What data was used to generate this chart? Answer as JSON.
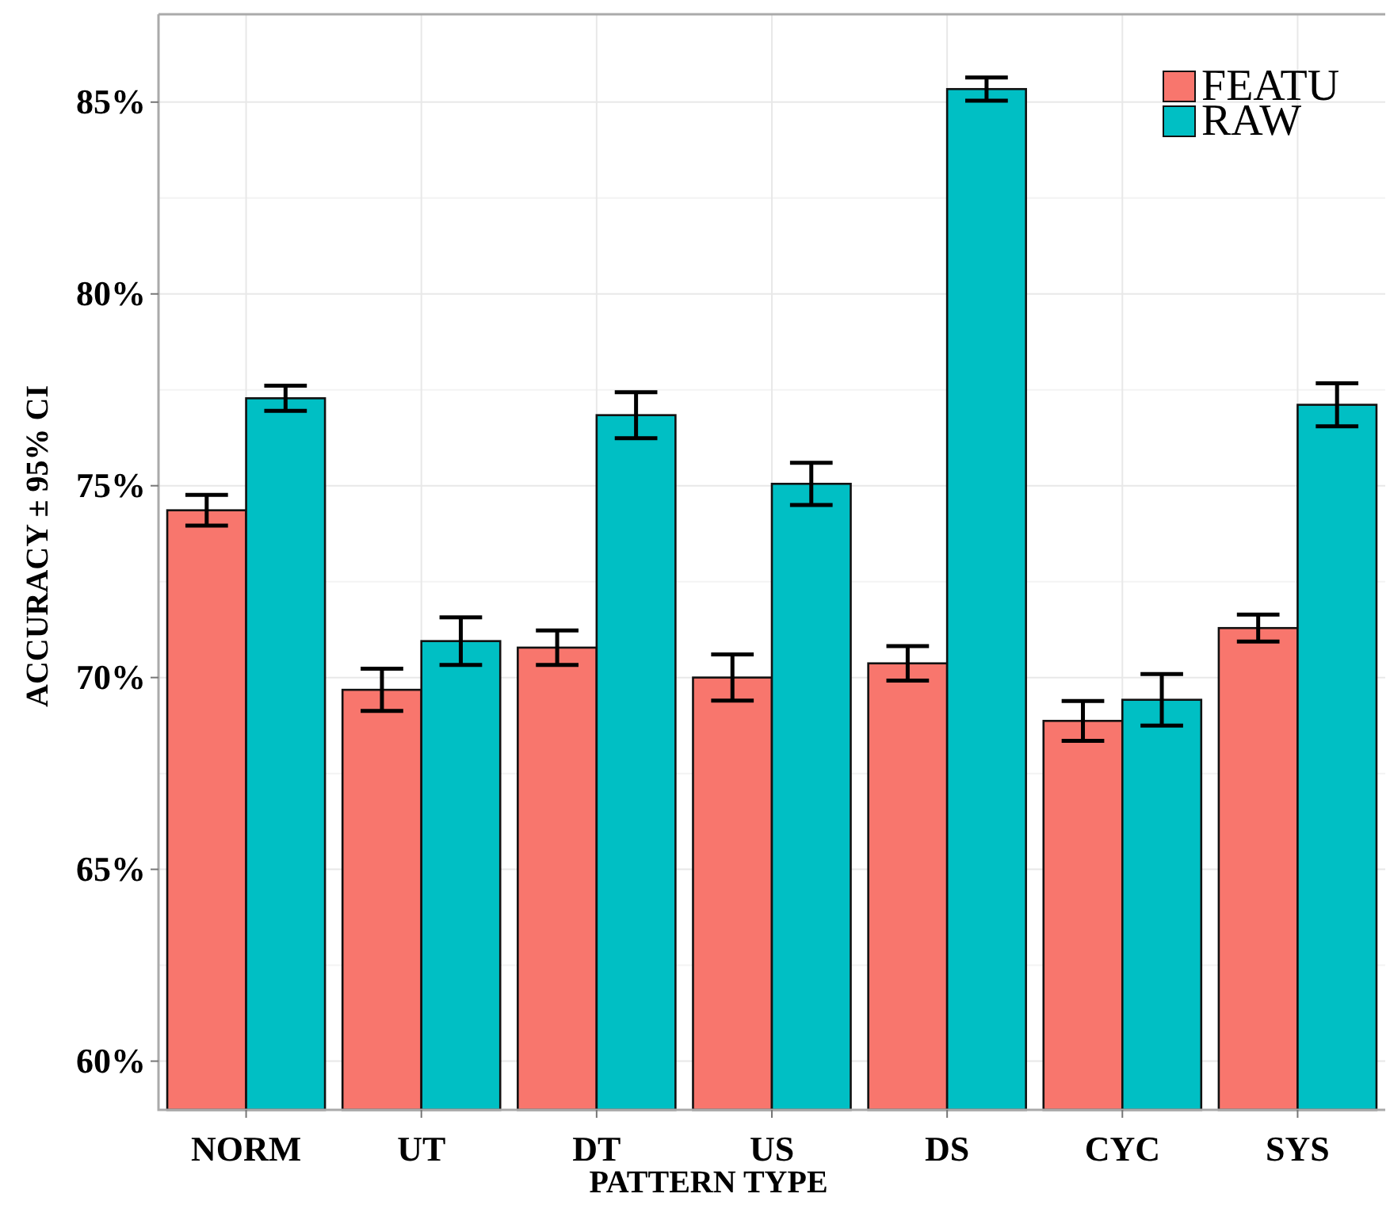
{
  "chart_data": {
    "type": "bar",
    "xlabel": "PATTERN TYPE",
    "ylabel": "ACCURACY ± 95% CI",
    "categories": [
      "NORM",
      "UT",
      "DT",
      "US",
      "DS",
      "CYC",
      "SYS"
    ],
    "series": [
      {
        "name": "FEATU",
        "color": "#f8766d",
        "values": [
          74.36,
          69.68,
          70.78,
          70.0,
          70.37,
          68.87,
          71.29
        ],
        "errors": [
          0.4,
          0.55,
          0.45,
          0.6,
          0.45,
          0.52,
          0.35
        ]
      },
      {
        "name": "RAW",
        "color": "#00bfc4",
        "values": [
          77.28,
          70.95,
          76.84,
          75.05,
          85.34,
          69.42,
          77.11
        ],
        "errors": [
          0.33,
          0.62,
          0.6,
          0.55,
          0.3,
          0.67,
          0.56
        ]
      }
    ],
    "ylim": [
      58.73,
      87.29
    ],
    "yticks": [
      {
        "value": 60,
        "label": "60%"
      },
      {
        "value": 65,
        "label": "65%"
      },
      {
        "value": 70,
        "label": "70%"
      },
      {
        "value": 75,
        "label": "75%"
      },
      {
        "value": 80,
        "label": "80%"
      },
      {
        "value": 85,
        "label": "85%"
      }
    ],
    "grid": true,
    "legend": "top right"
  }
}
